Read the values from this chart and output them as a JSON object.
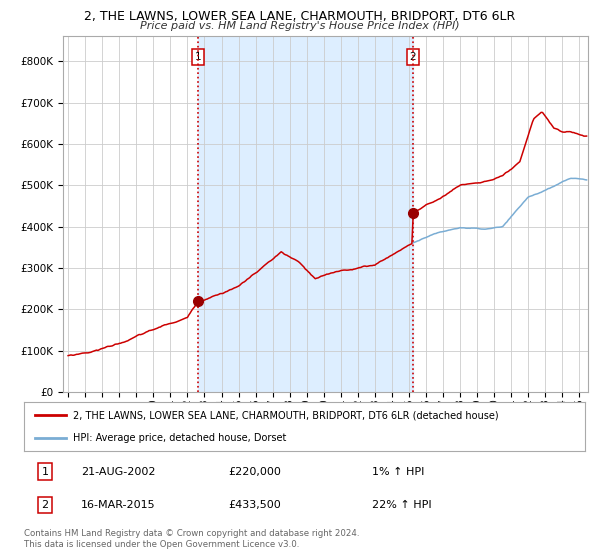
{
  "title1": "2, THE LAWNS, LOWER SEA LANE, CHARMOUTH, BRIDPORT, DT6 6LR",
  "title2": "Price paid vs. HM Land Registry's House Price Index (HPI)",
  "ytick_values": [
    0,
    100000,
    200000,
    300000,
    400000,
    500000,
    600000,
    700000,
    800000
  ],
  "ylim": [
    0,
    860000
  ],
  "xlim_start": 1994.7,
  "xlim_end": 2025.5,
  "xtick_years": [
    1995,
    1996,
    1997,
    1998,
    1999,
    2000,
    2001,
    2002,
    2003,
    2004,
    2005,
    2006,
    2007,
    2008,
    2009,
    2010,
    2011,
    2012,
    2013,
    2014,
    2015,
    2016,
    2017,
    2018,
    2019,
    2020,
    2021,
    2022,
    2023,
    2024,
    2025
  ],
  "transaction1_date": 2002.64,
  "transaction1_price": 220000,
  "transaction1_label": "1",
  "transaction2_date": 2015.21,
  "transaction2_price": 433500,
  "transaction2_label": "2",
  "shaded_region_start": 2002.64,
  "shaded_region_end": 2015.21,
  "hpi_line_color": "#7aadd4",
  "price_line_color": "#cc0000",
  "dot_color": "#990000",
  "vline_color": "#cc0000",
  "shaded_color": "#ddeeff",
  "grid_color": "#cccccc",
  "background_color": "#ffffff",
  "legend_entry1": "2, THE LAWNS, LOWER SEA LANE, CHARMOUTH, BRIDPORT, DT6 6LR (detached house)",
  "legend_entry2": "HPI: Average price, detached house, Dorset",
  "table_row1_num": "1",
  "table_row1_date": "21-AUG-2002",
  "table_row1_price": "£220,000",
  "table_row1_hpi": "1% ↑ HPI",
  "table_row2_num": "2",
  "table_row2_date": "16-MAR-2015",
  "table_row2_price": "£433,500",
  "table_row2_hpi": "22% ↑ HPI",
  "footer": "Contains HM Land Registry data © Crown copyright and database right 2024.\nThis data is licensed under the Open Government Licence v3.0."
}
